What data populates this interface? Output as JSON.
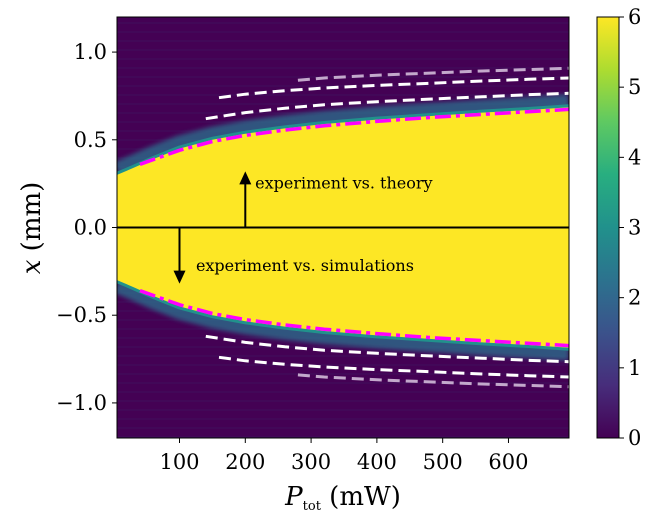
{
  "chart_data": {
    "type": "heatmap",
    "title": "",
    "xlabel": "P_tot (mW)",
    "xlabel_main": "P",
    "xlabel_sub": "tot",
    "xlabel_unit": " (mW)",
    "ylabel": "x (mm)",
    "ylabel_var": "x",
    "ylabel_unit": " (mm)",
    "xlim": [
      5,
      692
    ],
    "ylim": [
      -1.2,
      1.2
    ],
    "xticks": [
      100,
      200,
      300,
      400,
      500,
      600
    ],
    "xtick_labels": [
      "100",
      "200",
      "300",
      "400",
      "500",
      "600"
    ],
    "yticks": [
      1.0,
      0.5,
      0.0,
      -0.5,
      -1.0
    ],
    "ytick_labels": [
      "1.0",
      "0.5",
      "0.0",
      "−0.5",
      "−1.0"
    ],
    "colorbar": {
      "colormap": "viridis",
      "range": [
        0,
        6
      ],
      "ticks": [
        0,
        1,
        2,
        3,
        4,
        5,
        6
      ],
      "tick_labels": [
        "0",
        "1",
        "2",
        "3",
        "4",
        "5",
        "6"
      ]
    },
    "colors": {
      "saturated": "#fde725",
      "background": "#440154",
      "edge": "#21918c",
      "dashdot": "#ff00ff",
      "dashed": "#ffffff",
      "dashed_faint": "#d9c6e0",
      "divider": "#000000"
    },
    "beam_edge": {
      "x": [
        5,
        30,
        60,
        100,
        150,
        200,
        260,
        320,
        400,
        480,
        560,
        630,
        692
      ],
      "y": [
        0.3,
        0.34,
        0.39,
        0.45,
        0.5,
        0.535,
        0.565,
        0.59,
        0.615,
        0.635,
        0.655,
        0.67,
        0.685
      ]
    },
    "series": [
      {
        "style": "dashdot",
        "x": [
          40,
          100,
          150,
          200,
          260,
          320,
          400,
          480,
          560,
          630,
          692
        ],
        "y": [
          0.36,
          0.44,
          0.49,
          0.525,
          0.555,
          0.58,
          0.605,
          0.627,
          0.645,
          0.66,
          0.673
        ]
      },
      {
        "style": "dashed",
        "x": [
          140,
          200,
          260,
          320,
          400,
          480,
          560,
          630,
          692
        ],
        "y": [
          0.62,
          0.655,
          0.68,
          0.7,
          0.717,
          0.732,
          0.745,
          0.757,
          0.765
        ]
      },
      {
        "style": "dashed",
        "x": [
          160,
          200,
          260,
          320,
          400,
          480,
          560,
          630,
          692
        ],
        "y": [
          0.74,
          0.76,
          0.78,
          0.795,
          0.81,
          0.822,
          0.835,
          0.845,
          0.852
        ]
      },
      {
        "style": "dashed_faint",
        "x": [
          280,
          320,
          400,
          480,
          560,
          630,
          692
        ],
        "y": [
          0.84,
          0.852,
          0.868,
          0.88,
          0.892,
          0.9,
          0.908
        ]
      }
    ],
    "annotations": [
      {
        "text": "experiment vs. theory",
        "arrow_x": 200,
        "arrow_from": 0.0,
        "arrow_to": 0.32,
        "text_x": 215,
        "text_y": 0.25
      },
      {
        "text": "experiment vs. simulations",
        "arrow_x": 100,
        "arrow_from": 0.0,
        "arrow_to": -0.32,
        "text_x": 125,
        "text_y": -0.22
      }
    ]
  }
}
